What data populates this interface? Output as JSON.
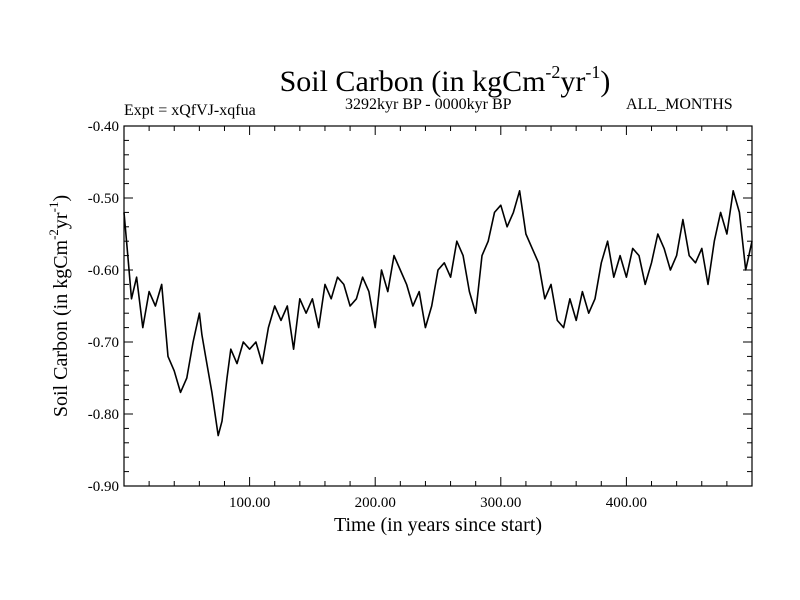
{
  "chart_data": {
    "type": "line",
    "title": "Soil Carbon (in kgCm",
    "title_exp1": "-2",
    "title_mid": "yr",
    "title_exp2": "-1",
    "title_end": ")",
    "experiment": "Expt = xQfVJ-xqfua",
    "period": "3292kyr BP - 0000kyr BP",
    "months": "ALL_MONTHS",
    "xlabel": "Time (in years since start)",
    "ylabel": "Soil Carbon (in kgCm",
    "ylabel_exp1": "-2",
    "ylabel_mid": "yr",
    "ylabel_exp2": "-1",
    "ylabel_end": ")",
    "xlim": [
      0,
      500
    ],
    "ylim": [
      -0.9,
      -0.4
    ],
    "xticks": [
      100,
      200,
      300,
      400
    ],
    "xtick_labels": [
      "100.00",
      "200.00",
      "300.00",
      "400.00"
    ],
    "yticks": [
      -0.9,
      -0.8,
      -0.7,
      -0.6,
      -0.5,
      -0.4
    ],
    "ytick_labels": [
      "-0.90",
      "-0.80",
      "-0.70",
      "-0.60",
      "-0.50",
      "-0.40"
    ],
    "line_color": "#000000",
    "x": [
      0,
      3,
      6,
      10,
      15,
      20,
      25,
      30,
      35,
      40,
      45,
      50,
      55,
      60,
      62,
      65,
      70,
      75,
      78,
      82,
      85,
      90,
      95,
      100,
      105,
      110,
      115,
      120,
      125,
      130,
      135,
      140,
      145,
      150,
      155,
      160,
      165,
      170,
      175,
      180,
      185,
      190,
      195,
      200,
      205,
      210,
      215,
      220,
      225,
      230,
      235,
      240,
      245,
      250,
      255,
      260,
      265,
      270,
      275,
      280,
      285,
      290,
      295,
      300,
      305,
      310,
      315,
      320,
      325,
      330,
      335,
      340,
      345,
      350,
      355,
      360,
      365,
      370,
      375,
      380,
      385,
      390,
      395,
      400,
      405,
      410,
      415,
      420,
      425,
      430,
      435,
      440,
      445,
      450,
      455,
      460,
      465,
      470,
      475,
      480,
      485,
      490,
      495,
      500
    ],
    "values": [
      -0.52,
      -0.58,
      -0.64,
      -0.61,
      -0.68,
      -0.63,
      -0.65,
      -0.62,
      -0.72,
      -0.74,
      -0.77,
      -0.75,
      -0.7,
      -0.66,
      -0.69,
      -0.72,
      -0.77,
      -0.83,
      -0.81,
      -0.75,
      -0.71,
      -0.73,
      -0.7,
      -0.71,
      -0.7,
      -0.73,
      -0.68,
      -0.65,
      -0.67,
      -0.65,
      -0.71,
      -0.64,
      -0.66,
      -0.64,
      -0.68,
      -0.62,
      -0.64,
      -0.61,
      -0.62,
      -0.65,
      -0.64,
      -0.61,
      -0.63,
      -0.68,
      -0.6,
      -0.63,
      -0.58,
      -0.6,
      -0.62,
      -0.65,
      -0.63,
      -0.68,
      -0.65,
      -0.6,
      -0.59,
      -0.61,
      -0.56,
      -0.58,
      -0.63,
      -0.66,
      -0.58,
      -0.56,
      -0.52,
      -0.51,
      -0.54,
      -0.52,
      -0.49,
      -0.55,
      -0.57,
      -0.59,
      -0.64,
      -0.62,
      -0.67,
      -0.68,
      -0.64,
      -0.67,
      -0.63,
      -0.66,
      -0.64,
      -0.59,
      -0.56,
      -0.61,
      -0.58,
      -0.61,
      -0.57,
      -0.58,
      -0.62,
      -0.59,
      -0.55,
      -0.57,
      -0.6,
      -0.58,
      -0.53,
      -0.58,
      -0.59,
      -0.57,
      -0.62,
      -0.56,
      -0.52,
      -0.55,
      -0.49,
      -0.52,
      -0.6,
      -0.56
    ]
  }
}
